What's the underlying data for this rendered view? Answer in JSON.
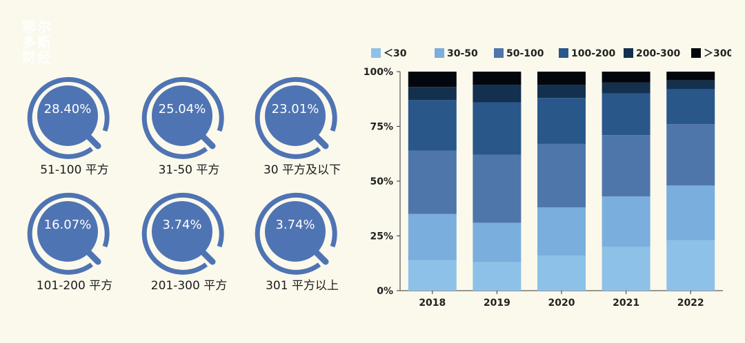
{
  "logo": {
    "line1": "鄂尔",
    "line2": "多斯",
    "line3": "财经"
  },
  "stats": [
    {
      "value": "28.40%",
      "label": "51-100 平方"
    },
    {
      "value": "25.04%",
      "label": "31-50 平方"
    },
    {
      "value": "23.01%",
      "label": "30 平方及以下"
    },
    {
      "value": "16.07%",
      "label": "101-200 平方"
    },
    {
      "value": "3.74%",
      "label": "201-300 平方"
    },
    {
      "value": "3.74%",
      "label": "301 平方以上"
    }
  ],
  "colors": {
    "ring": "#4f74b3",
    "series": [
      "#8dc1e8",
      "#7aaedc",
      "#4f76ab",
      "#2a578a",
      "#13304f",
      "#03070d"
    ],
    "background": "#fbf9ec"
  },
  "chart_data": {
    "type": "bar",
    "stacked": true,
    "percent": true,
    "categories": [
      "2018",
      "2019",
      "2020",
      "2021",
      "2022"
    ],
    "series": [
      {
        "name": "＜30",
        "values": [
          14,
          13,
          16,
          20,
          23
        ]
      },
      {
        "name": "30-50",
        "values": [
          21,
          18,
          22,
          23,
          25
        ]
      },
      {
        "name": "50-100",
        "values": [
          29,
          31,
          29,
          28,
          28
        ]
      },
      {
        "name": "100-200",
        "values": [
          23,
          24,
          21,
          19,
          16
        ]
      },
      {
        "name": "200-300",
        "values": [
          6,
          8,
          6,
          5,
          4
        ]
      },
      {
        "name": "＞300",
        "values": [
          7,
          6,
          6,
          5,
          4
        ]
      }
    ],
    "yticks": [
      "0%",
      "25%",
      "50%",
      "75%",
      "100%"
    ],
    "ylim": [
      0,
      100
    ],
    "legend": "top",
    "grid": false
  }
}
